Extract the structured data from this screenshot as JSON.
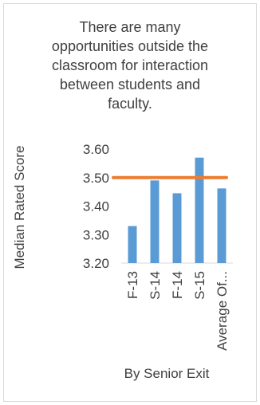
{
  "chart_data": {
    "type": "bar",
    "title_lines": [
      "There are many",
      "opportunities outside the",
      "classroom for interaction",
      "between students and",
      "faculty."
    ],
    "categories": [
      "F-13",
      "S-14",
      "F-14",
      "S-15",
      "Average Of..."
    ],
    "values": [
      3.33,
      3.49,
      3.445,
      3.57,
      3.462
    ],
    "reference_line": 3.5,
    "xlabel": "By Senior Exit",
    "ylabel": "Median Rated Score",
    "ylim": [
      3.2,
      3.6
    ],
    "yticks": [
      "3.20",
      "3.30",
      "3.40",
      "3.50",
      "3.60"
    ],
    "grid": false,
    "legend": "none",
    "colors": {
      "bar": "#5b9bd5",
      "reference_line": "#ed7d31",
      "axis": "#d9d9d9",
      "text": "#404040"
    }
  }
}
